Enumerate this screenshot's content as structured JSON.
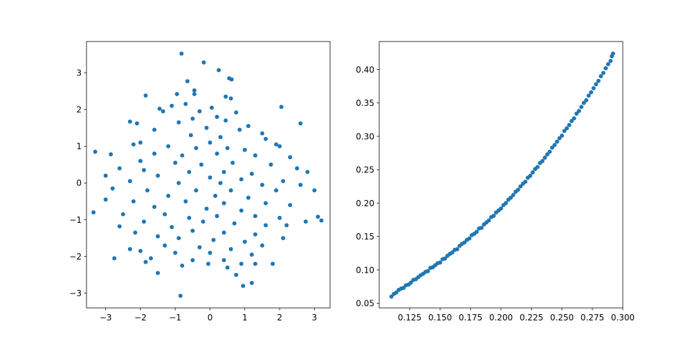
{
  "chart_data": [
    {
      "type": "scatter",
      "title": "",
      "xlabel": "",
      "ylabel": "",
      "xlim": [
        -3.55,
        3.45
      ],
      "ylim": [
        -3.4,
        3.85
      ],
      "xticks": [
        -3,
        -2,
        -1,
        0,
        1,
        2,
        3
      ],
      "yticks": [
        -3,
        -2,
        -1,
        0,
        1,
        2,
        3
      ],
      "xtick_labels": [
        "−3",
        "−2",
        "−1",
        "0",
        "1",
        "2",
        "3"
      ],
      "ytick_labels": [
        "−3",
        "−2",
        "−1",
        "0",
        "1",
        "2",
        "3"
      ],
      "grid": false,
      "series": [
        {
          "color": "#1f77b4",
          "marker": "circle",
          "points": [
            [
              -0.82,
              3.52
            ],
            [
              -0.18,
              3.28
            ],
            [
              0.25,
              3.07
            ],
            [
              0.55,
              2.85
            ],
            [
              0.62,
              2.82
            ],
            [
              -0.65,
              2.77
            ],
            [
              -0.45,
              2.52
            ],
            [
              -0.45,
              2.42
            ],
            [
              -1.85,
              2.38
            ],
            [
              -0.95,
              2.42
            ],
            [
              0.6,
              2.3
            ],
            [
              0.45,
              2.35
            ],
            [
              -1.1,
              2.1
            ],
            [
              -0.7,
              2.15
            ],
            [
              0.05,
              2.05
            ],
            [
              2.05,
              2.07
            ],
            [
              -1.45,
              2.02
            ],
            [
              -1.35,
              1.95
            ],
            [
              -0.3,
              1.95
            ],
            [
              0.75,
              1.92
            ],
            [
              -2.3,
              1.67
            ],
            [
              -2.1,
              1.62
            ],
            [
              2.6,
              1.62
            ],
            [
              0.2,
              1.8
            ],
            [
              -0.5,
              1.75
            ],
            [
              0.45,
              1.7
            ],
            [
              -0.9,
              1.65
            ],
            [
              1.1,
              1.55
            ],
            [
              -0.1,
              1.5
            ],
            [
              0.85,
              1.45
            ],
            [
              -1.6,
              1.45
            ],
            [
              1.5,
              1.35
            ],
            [
              -0.55,
              1.3
            ],
            [
              0.3,
              1.25
            ],
            [
              1.6,
              1.2
            ],
            [
              -2.2,
              1.05
            ],
            [
              -2.0,
              1.1
            ],
            [
              1.9,
              1.05
            ],
            [
              2.0,
              1.0
            ],
            [
              -1.2,
              1.0
            ],
            [
              0.0,
              1.1
            ],
            [
              0.5,
              0.95
            ],
            [
              1.0,
              0.9
            ],
            [
              -0.4,
              0.95
            ],
            [
              -3.3,
              0.85
            ],
            [
              -2.85,
              0.78
            ],
            [
              -1.6,
              0.8
            ],
            [
              -0.8,
              0.75
            ],
            [
              0.2,
              0.8
            ],
            [
              1.3,
              0.75
            ],
            [
              2.3,
              0.7
            ],
            [
              -2.0,
              0.6
            ],
            [
              -1.0,
              0.55
            ],
            [
              0.65,
              0.55
            ],
            [
              1.75,
              0.5
            ],
            [
              -0.25,
              0.5
            ],
            [
              2.5,
              0.4
            ],
            [
              -2.6,
              0.4
            ],
            [
              -1.9,
              0.35
            ],
            [
              -0.6,
              0.3
            ],
            [
              0.4,
              0.3
            ],
            [
              1.2,
              0.25
            ],
            [
              2.8,
              0.3
            ],
            [
              -3.0,
              0.2
            ],
            [
              -1.5,
              0.2
            ],
            [
              0.0,
              0.15
            ],
            [
              0.9,
              0.1
            ],
            [
              2.1,
              0.05
            ],
            [
              -2.3,
              0.05
            ],
            [
              -0.9,
              0.0
            ],
            [
              0.3,
              0.0
            ],
            [
              1.5,
              -0.05
            ],
            [
              2.6,
              -0.05
            ],
            [
              -2.8,
              -0.15
            ],
            [
              -1.8,
              -0.2
            ],
            [
              -0.4,
              -0.2
            ],
            [
              0.6,
              -0.2
            ],
            [
              1.9,
              -0.2
            ],
            [
              -1.2,
              -0.35
            ],
            [
              0.15,
              -0.35
            ],
            [
              1.1,
              -0.4
            ],
            [
              3.0,
              -0.2
            ],
            [
              -3.0,
              -0.45
            ],
            [
              -2.2,
              -0.5
            ],
            [
              -0.7,
              -0.5
            ],
            [
              0.4,
              -0.55
            ],
            [
              1.6,
              -0.55
            ],
            [
              -1.6,
              -0.65
            ],
            [
              -0.1,
              -0.7
            ],
            [
              0.9,
              -0.75
            ],
            [
              2.3,
              -0.6
            ],
            [
              -3.35,
              -0.8
            ],
            [
              -2.5,
              -0.85
            ],
            [
              -1.3,
              -0.85
            ],
            [
              0.2,
              -0.9
            ],
            [
              1.3,
              -0.9
            ],
            [
              -0.6,
              -0.95
            ],
            [
              2.0,
              -0.95
            ],
            [
              3.1,
              -0.92
            ],
            [
              3.2,
              -1.02
            ],
            [
              2.75,
              -1.05
            ],
            [
              -2.6,
              -1.18
            ],
            [
              -1.9,
              -1.05
            ],
            [
              -0.2,
              -1.05
            ],
            [
              0.7,
              -1.1
            ],
            [
              1.6,
              -1.15
            ],
            [
              -1.1,
              -1.2
            ],
            [
              2.2,
              -1.15
            ],
            [
              -2.15,
              -1.35
            ],
            [
              -0.5,
              -1.3
            ],
            [
              0.4,
              -1.35
            ],
            [
              1.3,
              -1.4
            ],
            [
              -1.5,
              -1.45
            ],
            [
              -0.9,
              -1.5
            ],
            [
              0.1,
              -1.55
            ],
            [
              1.0,
              -1.6
            ],
            [
              2.1,
              -1.5
            ],
            [
              -1.3,
              -1.7
            ],
            [
              -0.3,
              -1.75
            ],
            [
              0.6,
              -1.8
            ],
            [
              1.5,
              -1.7
            ],
            [
              -2.3,
              -1.8
            ],
            [
              -2.0,
              -1.85
            ],
            [
              -1.0,
              -1.9
            ],
            [
              0.0,
              -1.9
            ],
            [
              1.2,
              -1.95
            ],
            [
              -1.85,
              -2.15
            ],
            [
              -1.7,
              -2.05
            ],
            [
              -0.5,
              -2.1
            ],
            [
              0.4,
              -2.1
            ],
            [
              -2.75,
              -2.05
            ],
            [
              0.9,
              -2.2
            ],
            [
              1.3,
              -2.2
            ],
            [
              1.8,
              -2.2
            ],
            [
              -0.8,
              -2.25
            ],
            [
              -0.05,
              -2.2
            ],
            [
              0.5,
              -2.3
            ],
            [
              -1.5,
              -2.45
            ],
            [
              0.75,
              -2.5
            ],
            [
              0.95,
              -2.8
            ],
            [
              1.2,
              -2.72
            ],
            [
              -0.85,
              -3.07
            ]
          ]
        }
      ]
    },
    {
      "type": "scatter",
      "title": "",
      "xlabel": "",
      "ylabel": "",
      "xlim": [
        0.1,
        0.3
      ],
      "ylim": [
        0.043,
        0.442
      ],
      "xticks": [
        0.125,
        0.15,
        0.175,
        0.2,
        0.225,
        0.25,
        0.275,
        0.3
      ],
      "yticks": [
        0.05,
        0.1,
        0.15,
        0.2,
        0.25,
        0.3,
        0.35,
        0.4
      ],
      "xtick_labels": [
        "0.125",
        "0.150",
        "0.175",
        "0.200",
        "0.225",
        "0.250",
        "0.275",
        "0.300"
      ],
      "ytick_labels": [
        "0.05",
        "0.10",
        "0.15",
        "0.20",
        "0.25",
        "0.30",
        "0.35",
        "0.40"
      ],
      "grid": false,
      "series": [
        {
          "color": "#1f77b4",
          "marker": "circle",
          "points": [
            [
              0.11,
              0.06
            ],
            [
              0.112,
              0.064
            ],
            [
              0.114,
              0.066
            ],
            [
              0.116,
              0.07
            ],
            [
              0.118,
              0.072
            ],
            [
              0.12,
              0.073
            ],
            [
              0.122,
              0.077
            ],
            [
              0.124,
              0.078
            ],
            [
              0.126,
              0.081
            ],
            [
              0.128,
              0.085
            ],
            [
              0.13,
              0.086
            ],
            [
              0.132,
              0.089
            ],
            [
              0.134,
              0.092
            ],
            [
              0.136,
              0.094
            ],
            [
              0.138,
              0.097
            ],
            [
              0.14,
              0.098
            ],
            [
              0.142,
              0.103
            ],
            [
              0.144,
              0.104
            ],
            [
              0.146,
              0.107
            ],
            [
              0.148,
              0.11
            ],
            [
              0.15,
              0.111
            ],
            [
              0.152,
              0.116
            ],
            [
              0.154,
              0.117
            ],
            [
              0.156,
              0.121
            ],
            [
              0.158,
              0.124
            ],
            [
              0.16,
              0.126
            ],
            [
              0.162,
              0.13
            ],
            [
              0.164,
              0.131
            ],
            [
              0.166,
              0.136
            ],
            [
              0.168,
              0.139
            ],
            [
              0.17,
              0.141
            ],
            [
              0.172,
              0.145
            ],
            [
              0.174,
              0.147
            ],
            [
              0.176,
              0.152
            ],
            [
              0.178,
              0.154
            ],
            [
              0.18,
              0.157
            ],
            [
              0.182,
              0.162
            ],
            [
              0.184,
              0.163
            ],
            [
              0.186,
              0.168
            ],
            [
              0.188,
              0.171
            ],
            [
              0.19,
              0.174
            ],
            [
              0.192,
              0.179
            ],
            [
              0.194,
              0.181
            ],
            [
              0.196,
              0.186
            ],
            [
              0.198,
              0.189
            ],
            [
              0.2,
              0.192
            ],
            [
              0.202,
              0.197
            ],
            [
              0.204,
              0.2
            ],
            [
              0.206,
              0.205
            ],
            [
              0.208,
              0.208
            ],
            [
              0.21,
              0.212
            ],
            [
              0.212,
              0.217
            ],
            [
              0.214,
              0.22
            ],
            [
              0.216,
              0.225
            ],
            [
              0.218,
              0.229
            ],
            [
              0.22,
              0.232
            ],
            [
              0.222,
              0.238
            ],
            [
              0.224,
              0.241
            ],
            [
              0.226,
              0.246
            ],
            [
              0.228,
              0.251
            ],
            [
              0.23,
              0.254
            ],
            [
              0.232,
              0.26
            ],
            [
              0.234,
              0.263
            ],
            [
              0.236,
              0.268
            ],
            [
              0.238,
              0.273
            ],
            [
              0.24,
              0.277
            ],
            [
              0.242,
              0.283
            ],
            [
              0.244,
              0.287
            ],
            [
              0.246,
              0.292
            ],
            [
              0.248,
              0.297
            ],
            [
              0.25,
              0.301
            ],
            [
              0.252,
              0.308
            ],
            [
              0.254,
              0.312
            ],
            [
              0.256,
              0.317
            ],
            [
              0.258,
              0.323
            ],
            [
              0.26,
              0.327
            ],
            [
              0.262,
              0.334
            ],
            [
              0.264,
              0.338
            ],
            [
              0.266,
              0.344
            ],
            [
              0.268,
              0.35
            ],
            [
              0.27,
              0.354
            ],
            [
              0.272,
              0.361
            ],
            [
              0.274,
              0.366
            ],
            [
              0.276,
              0.372
            ],
            [
              0.278,
              0.378
            ],
            [
              0.28,
              0.383
            ],
            [
              0.282,
              0.39
            ],
            [
              0.284,
              0.395
            ],
            [
              0.286,
              0.402
            ],
            [
              0.288,
              0.408
            ],
            [
              0.29,
              0.413
            ],
            [
              0.291,
              0.42
            ],
            [
              0.292,
              0.424
            ]
          ]
        }
      ]
    }
  ]
}
